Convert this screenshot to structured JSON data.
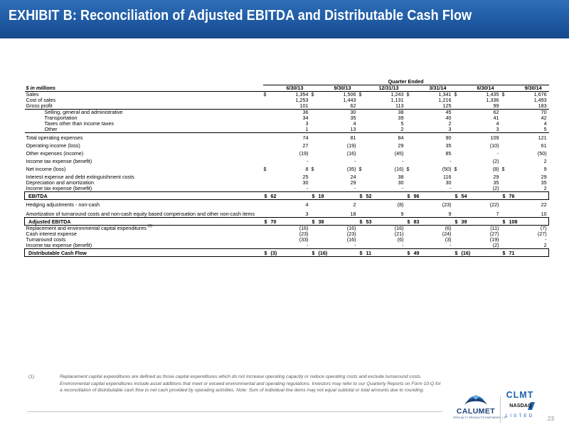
{
  "header": {
    "title": "EXHIBIT B:  Reconciliation of Adjusted EBITDA and Distributable Cash Flow",
    "bg_color": "#1f5aa3"
  },
  "table": {
    "quarter_label": "Quarter Ended",
    "unit_label": "$ in millions",
    "columns": [
      "6/30/13",
      "9/30/13",
      "12/31/13",
      "3/31/14",
      "6/30/14",
      "9/30/14"
    ],
    "rows": [
      {
        "label": "Sales",
        "values": [
          "1,354",
          "1,506",
          "1,243",
          "1,341",
          "1,435",
          "1,676"
        ],
        "dollar": true
      },
      {
        "label": "Cost of sales",
        "values": [
          "1,253",
          "1,443",
          "1,131",
          "1,216",
          "1,336",
          "1,493"
        ]
      },
      {
        "label": "Gross profit",
        "values": [
          "101",
          "62",
          "113",
          "125",
          "99",
          "183"
        ]
      },
      {
        "label": "Selling, general and administrative",
        "values": [
          "36",
          "30",
          "38",
          "45",
          "62",
          "70"
        ]
      },
      {
        "label": "Transportation",
        "values": [
          "34",
          "35",
          "39",
          "40",
          "41",
          "42"
        ]
      },
      {
        "label": "Taxes other than income taxes",
        "values": [
          "3",
          "4",
          "5",
          "2",
          "4",
          "4"
        ]
      },
      {
        "label": "Other",
        "values": [
          "1",
          "13",
          "2",
          "3",
          "3",
          "5"
        ]
      },
      {
        "label": "Total operating expenses",
        "values": [
          "74",
          "81",
          "84",
          "90",
          "109",
          "121"
        ]
      },
      {
        "label": "Operating income (loss)",
        "values": [
          "27",
          "(19)",
          "29",
          "35",
          "(10)",
          "61"
        ]
      },
      {
        "label": "Other expenses (income)",
        "values": [
          "(19)",
          "(16)",
          "(45)",
          "85",
          "-",
          "(50)"
        ]
      },
      {
        "label": "Income tax expense (benefit)",
        "values": [
          "-",
          "-",
          "-",
          "-",
          "(2)",
          "2"
        ]
      },
      {
        "label": "Net income (loss)",
        "values": [
          "8",
          "(35)",
          "(16)",
          "(50)",
          "(8)",
          "9"
        ],
        "dollar": true
      },
      {
        "label": "Interest expense and debt extinguishment costs",
        "values": [
          "25",
          "24",
          "38",
          "116",
          "29",
          "29"
        ]
      },
      {
        "label": "Depreciation and amortization",
        "values": [
          "30",
          "29",
          "30",
          "30",
          "35",
          "35"
        ]
      },
      {
        "label": "Income tax expense (benefit)",
        "values": [
          "-",
          "-",
          "-",
          "-",
          "(2)",
          "2"
        ]
      },
      {
        "label": "EBITDA",
        "values": [
          "62",
          "19",
          "52",
          "96",
          "54",
          "76"
        ],
        "dollar": true
      },
      {
        "label": "Hedging adjustments - non-cash",
        "values": [
          "4",
          "2",
          "(8)",
          "(23)",
          "(22)",
          "22"
        ]
      },
      {
        "label": "Amortization of turnaround costs and non-cash equity based compensation and other non-cash items",
        "values": [
          "3",
          "18",
          "9",
          "9",
          "7",
          "10"
        ]
      },
      {
        "label": "Adjusted EBITDA",
        "values": [
          "70",
          "38",
          "53",
          "83",
          "39",
          "108"
        ],
        "dollar": true
      },
      {
        "label": "Replacement and environmental capital expenditures",
        "footnote_ref": "(1)",
        "values": [
          "(16)",
          "(16)",
          "(16)",
          "(6)",
          "(11)",
          "(7)"
        ]
      },
      {
        "label": "Cash interest expense",
        "values": [
          "(23)",
          "(23)",
          "(21)",
          "(24)",
          "(27)",
          "(27)"
        ]
      },
      {
        "label": "Turnaround costs",
        "values": [
          "(33)",
          "(16)",
          "(6)",
          "(3)",
          "(19)",
          "-"
        ]
      },
      {
        "label": "Income tax expense (benefit)",
        "values": [
          "-",
          "-",
          "-",
          "-",
          "(2)",
          "2"
        ]
      },
      {
        "label": "Distributable Cash Flow",
        "values": [
          "(3)",
          "(16)",
          "11",
          "49",
          "(16)",
          "71"
        ],
        "dollar": true
      }
    ]
  },
  "footnote": {
    "number": "(1)",
    "text": "Replacement capital expenditures are defined as those capital expenditures which do not increase operating capacity or reduce operating costs and exclude turnaround costs. Environmental capital expenditures include asset additions that meet or exceed environmental and operating regulations. Investors may refer to our Quarterly Reports on Form 10-Q for a reconciliation of distributable cash flow to net cash provided by operating activities. Note: Sum of individual line items may not equal subtotal or total amounts due to rounding."
  },
  "logos": {
    "calumet_name": "CALUMET",
    "calumet_sub": "SPECIALTY PRODUCTS PARTNERS, L.P.",
    "ticker": "CLMT",
    "exchange": "NASDAQ",
    "listed": "LISTED",
    "calumet_color": "#1d3f7a",
    "nasdaq_color": "#1e63ad"
  },
  "page": {
    "number": "23"
  }
}
